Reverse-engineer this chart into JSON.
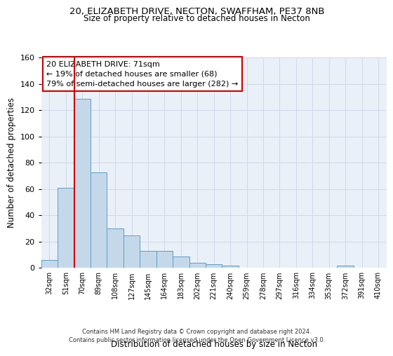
{
  "title_line1": "20, ELIZABETH DRIVE, NECTON, SWAFFHAM, PE37 8NB",
  "title_line2": "Size of property relative to detached houses in Necton",
  "xlabel": "Distribution of detached houses by size in Necton",
  "ylabel": "Number of detached properties",
  "bin_labels": [
    "32sqm",
    "51sqm",
    "70sqm",
    "89sqm",
    "108sqm",
    "127sqm",
    "145sqm",
    "164sqm",
    "183sqm",
    "202sqm",
    "221sqm",
    "240sqm",
    "259sqm",
    "278sqm",
    "297sqm",
    "316sqm",
    "334sqm",
    "353sqm",
    "372sqm",
    "391sqm",
    "410sqm"
  ],
  "bar_values": [
    6,
    61,
    129,
    73,
    30,
    25,
    13,
    13,
    9,
    4,
    3,
    2,
    0,
    0,
    0,
    0,
    0,
    0,
    2,
    0,
    0
  ],
  "bar_color": "#c5d8ea",
  "bar_edge_color": "#5a9ec9",
  "vline_x_index": 2,
  "vline_color": "#cc0000",
  "annotation_text": "20 ELIZABETH DRIVE: 71sqm\n← 19% of detached houses are smaller (68)\n79% of semi-detached houses are larger (282) →",
  "annotation_box_color": "#ffffff",
  "annotation_box_edge": "#cc0000",
  "ylim": [
    0,
    160
  ],
  "yticks": [
    0,
    20,
    40,
    60,
    80,
    100,
    120,
    140,
    160
  ],
  "grid_color": "#d0d8e8",
  "bg_color": "#eaf0f8",
  "footnote": "Contains HM Land Registry data © Crown copyright and database right 2024.\nContains public sector information licensed under the Open Government Licence v3.0."
}
